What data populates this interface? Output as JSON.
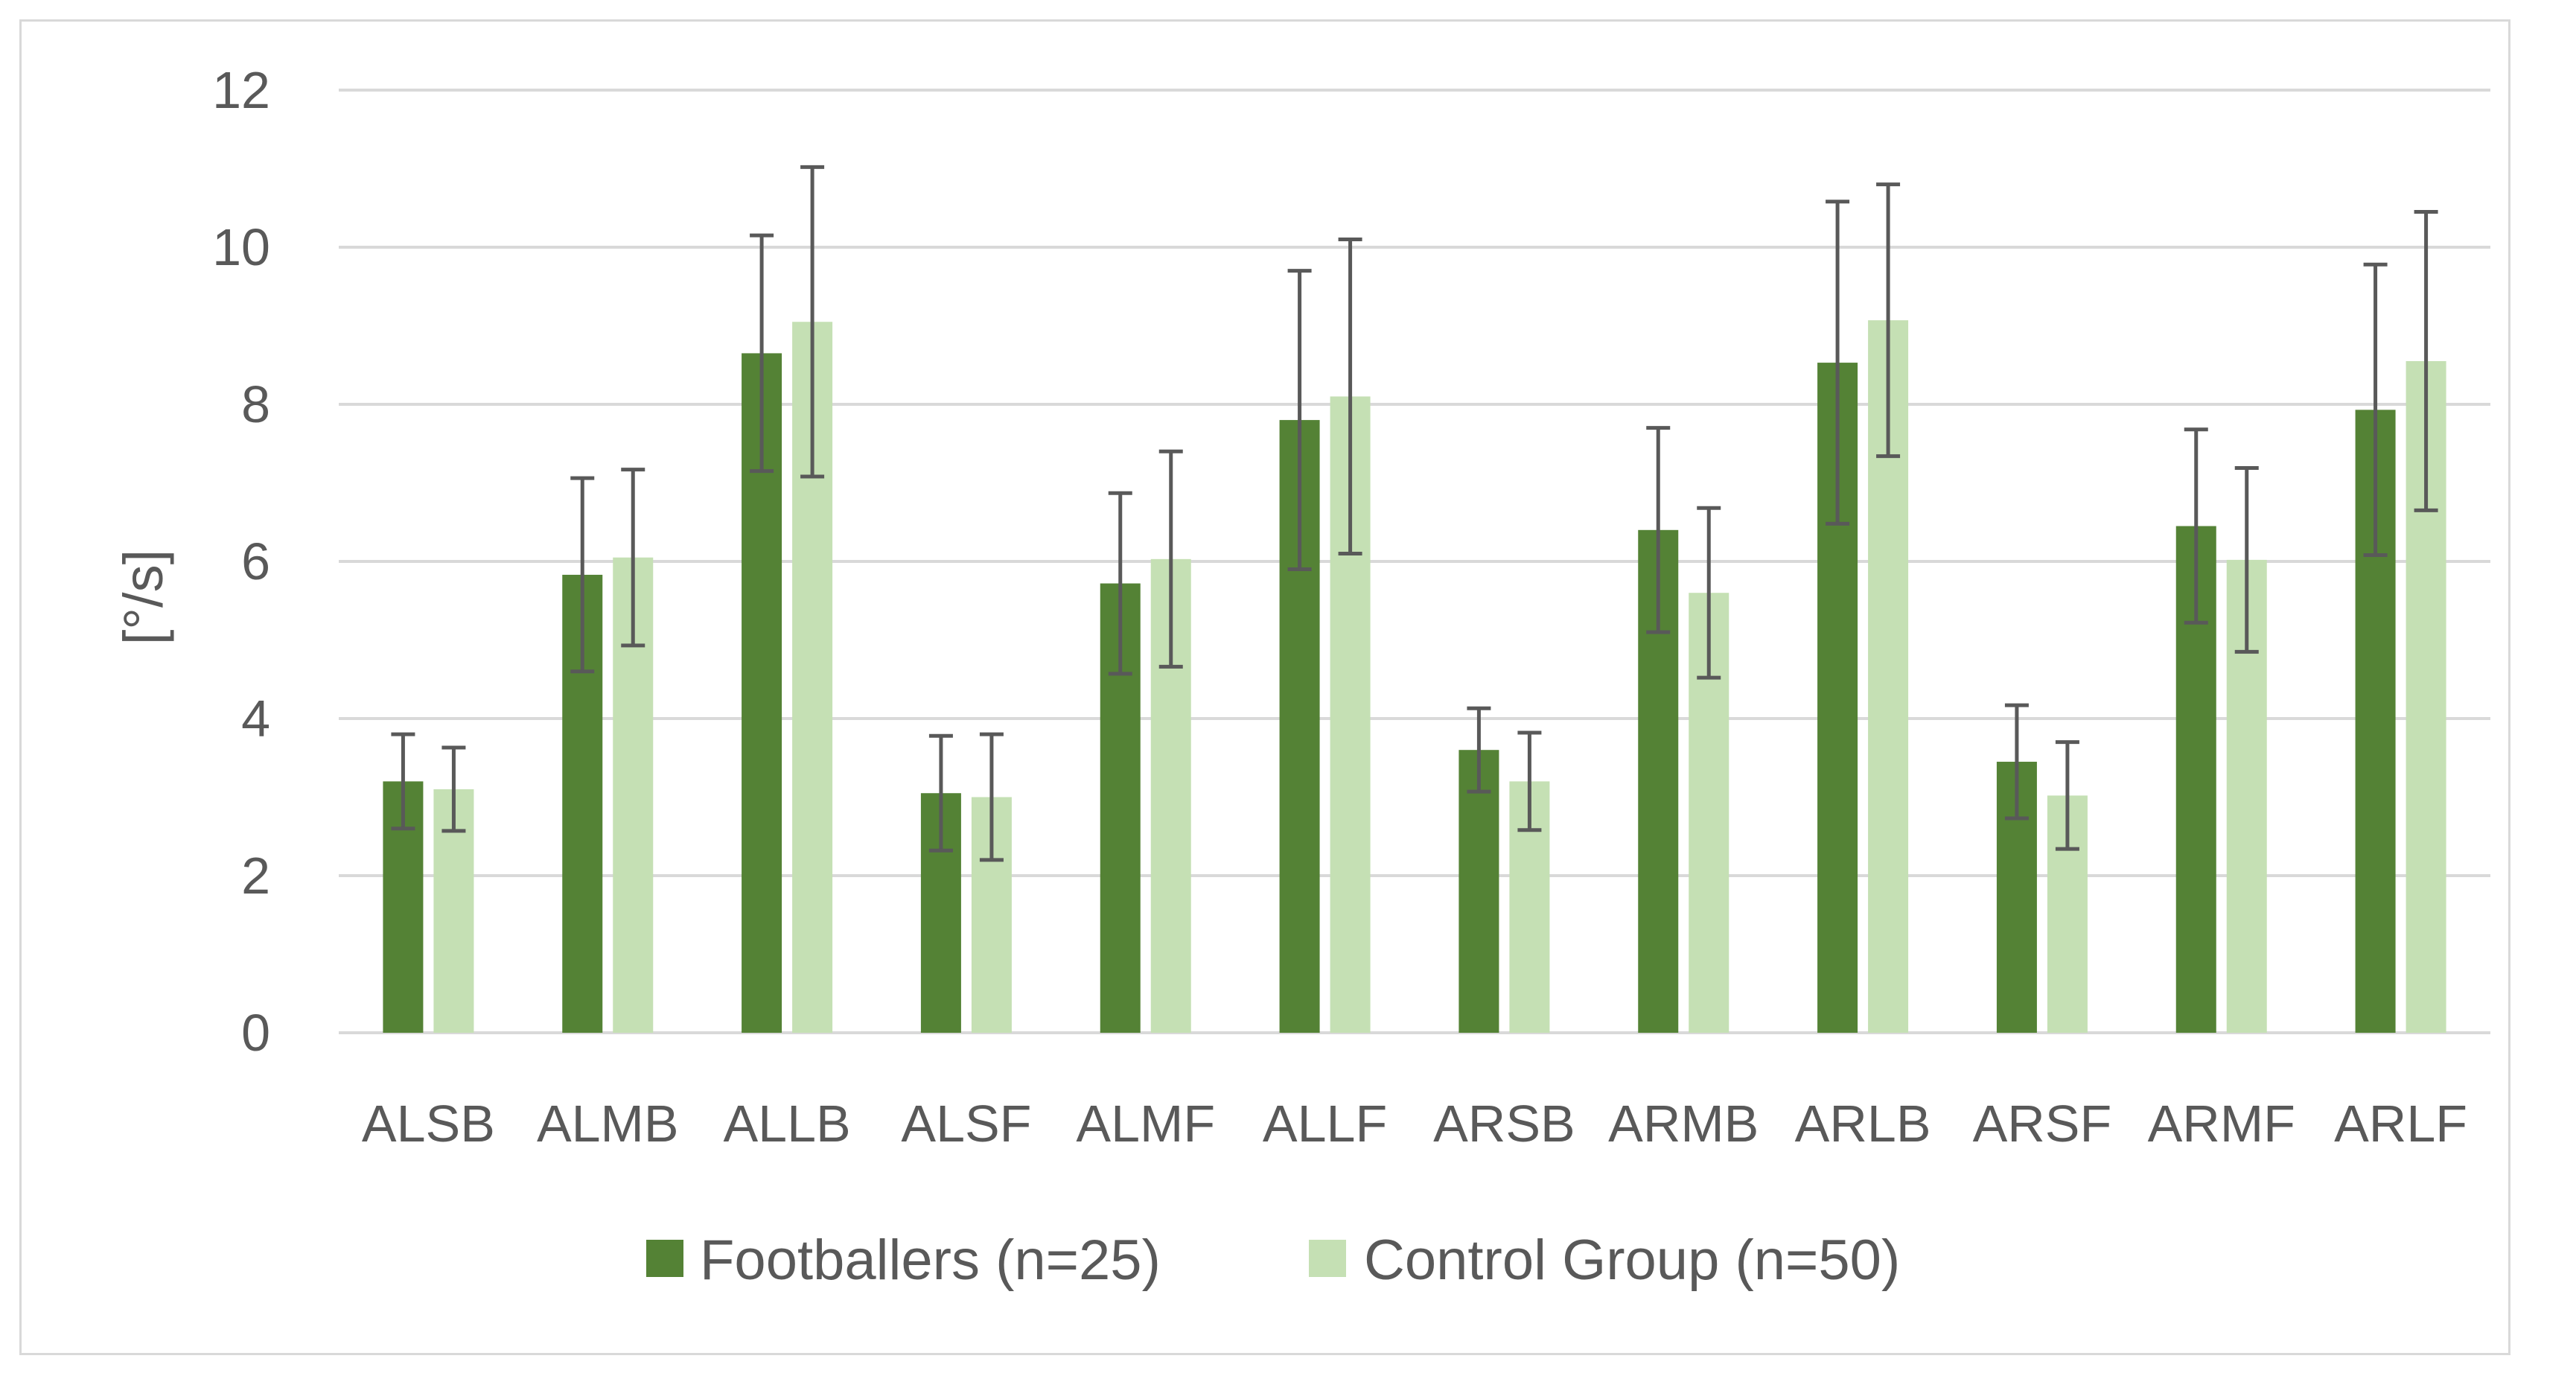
{
  "chart_data": {
    "type": "bar",
    "title": "",
    "xlabel": "",
    "ylabel": "[°/s]",
    "ylim": [
      0,
      12
    ],
    "yticks": [
      "0",
      "2",
      "4",
      "6",
      "8",
      "10",
      "12"
    ],
    "grid": true,
    "legend_position": "bottom",
    "categories": [
      "ALSB",
      "ALMB",
      "ALLB",
      "ALSF",
      "ALMF",
      "ALLF",
      "ARSB",
      "ARMB",
      "ARLB",
      "ARSF",
      "ARMF",
      "ARLF"
    ],
    "series": [
      {
        "name": "Footballers (n=25)",
        "color": "#548235",
        "values": [
          3.2,
          5.83,
          8.65,
          3.05,
          5.72,
          7.8,
          3.6,
          6.4,
          8.53,
          3.45,
          6.45,
          7.93
        ],
        "error": [
          0.6,
          1.23,
          1.5,
          0.73,
          1.15,
          1.9,
          0.53,
          1.3,
          2.05,
          0.72,
          1.23,
          1.85
        ]
      },
      {
        "name": "Control Group (n=50)",
        "color": "#c5e0b4",
        "values": [
          3.1,
          6.05,
          9.05,
          3.0,
          6.03,
          8.1,
          3.2,
          5.6,
          9.07,
          3.02,
          6.02,
          8.55
        ],
        "error": [
          0.53,
          1.12,
          1.97,
          0.8,
          1.37,
          2.0,
          0.62,
          1.08,
          1.73,
          0.68,
          1.17,
          1.9
        ]
      }
    ]
  }
}
